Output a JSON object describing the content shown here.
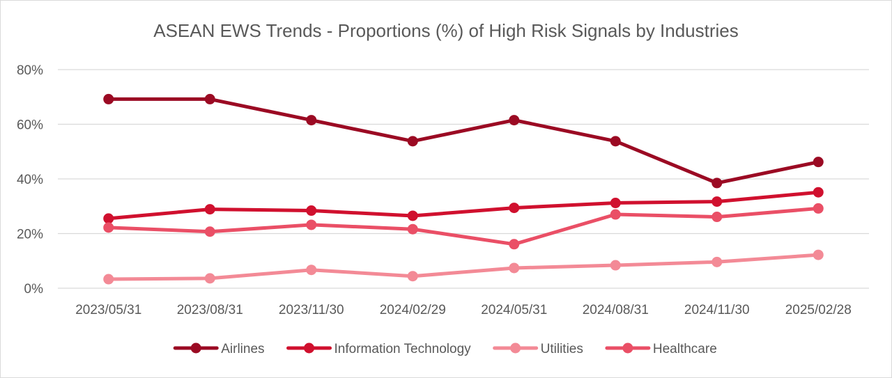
{
  "chart_data": {
    "type": "line",
    "title": "ASEAN EWS Trends - Proportions (%) of High Risk Signals by Industries",
    "xlabel": "",
    "ylabel": "",
    "categories": [
      "2023/05/31",
      "2023/08/31",
      "2023/11/30",
      "2024/02/29",
      "2024/05/31",
      "2024/08/31",
      "2024/11/30",
      "2025/02/28"
    ],
    "y_ticks": [
      "0%",
      "20%",
      "40%",
      "60%",
      "80%"
    ],
    "ylim": [
      0,
      80
    ],
    "grid": "horizontal",
    "legend_position": "bottom",
    "series": [
      {
        "name": "Airlines",
        "color": "#9b0a23",
        "values": [
          69.2,
          69.2,
          61.5,
          53.8,
          61.5,
          53.8,
          38.5,
          46.2
        ]
      },
      {
        "name": "Information Technology",
        "color": "#d0102e",
        "values": [
          25.5,
          28.9,
          28.4,
          26.5,
          29.4,
          31.2,
          31.7,
          35.1
        ]
      },
      {
        "name": "Utilities",
        "color": "#f38a96",
        "values": [
          3.3,
          3.6,
          6.7,
          4.4,
          7.4,
          8.4,
          9.6,
          12.2
        ]
      },
      {
        "name": "Healthcare",
        "color": "#ea4f66",
        "values": [
          22.2,
          20.7,
          23.2,
          21.6,
          16.1,
          27.0,
          26.1,
          29.2
        ]
      }
    ]
  }
}
